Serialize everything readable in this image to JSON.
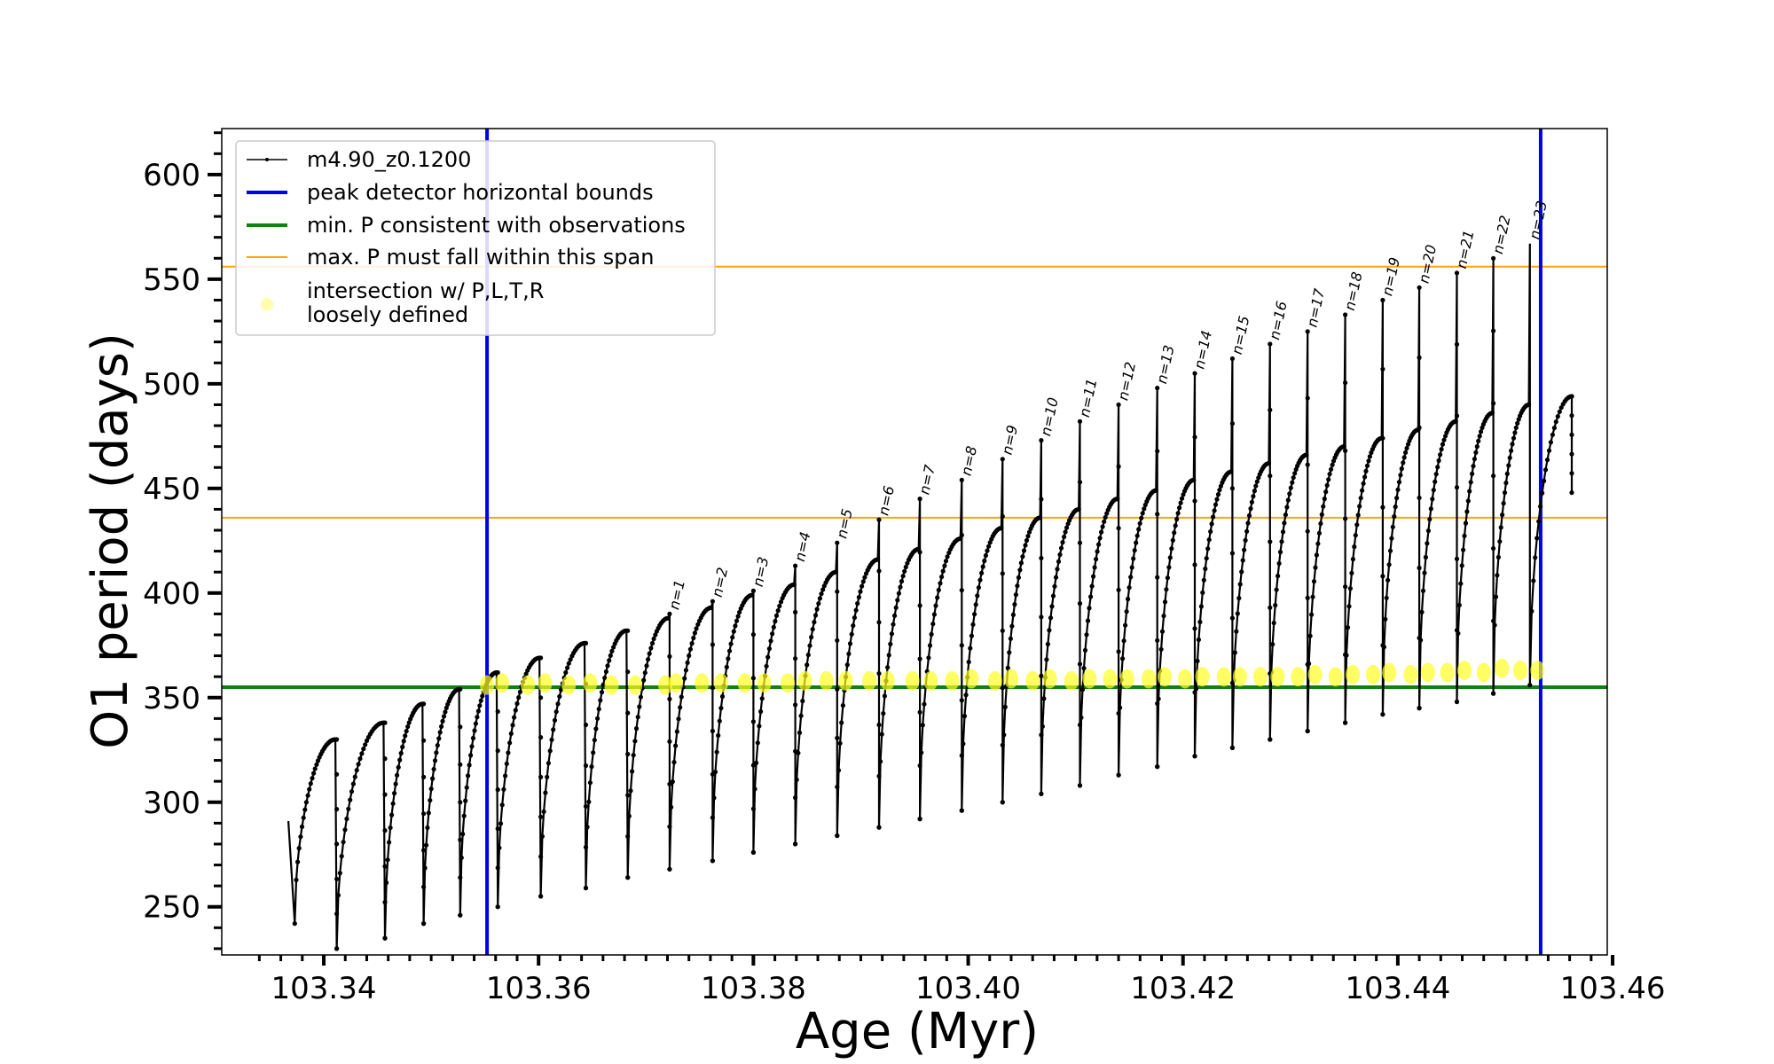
{
  "chart_data": {
    "type": "line",
    "xlabel": "Age (Myr)",
    "ylabel": "O1 period (days)",
    "xlim": [
      103.3305,
      103.4595
    ],
    "ylim": [
      227,
      622
    ],
    "x_ticks": [
      103.34,
      103.36,
      103.38,
      103.4,
      103.42,
      103.44,
      103.46
    ],
    "x_tick_labels": [
      "103.34",
      "103.36",
      "103.38",
      "103.40",
      "103.42",
      "103.44",
      "103.46"
    ],
    "y_ticks": [
      250,
      300,
      350,
      400,
      450,
      500,
      550,
      600
    ],
    "y_tick_labels": [
      "250",
      "300",
      "350",
      "400",
      "450",
      "500",
      "550",
      "600"
    ],
    "colors": {
      "track": "#000000",
      "peak_bounds": "#0000ee",
      "min_period": "#138013",
      "max_span": "#ffa500",
      "intersection": "#ffff22"
    },
    "legend": {
      "position": "top-left",
      "entries": [
        {
          "label": "m4.90_z0.1200",
          "style": "line-marker"
        },
        {
          "label": "peak detector horizontal bounds",
          "style": "blue-line"
        },
        {
          "label": "min. P consistent with observations",
          "style": "green-line"
        },
        {
          "label": "max. P must fall within this span",
          "style": "orange-line"
        },
        {
          "label": "intersection w/ P,L,T,R",
          "label2": "loosely defined",
          "style": "yellow-dot"
        }
      ]
    },
    "peak_bounds_x": [
      103.3552,
      103.4533
    ],
    "min_period_y": 355,
    "max_span_y": [
      436,
      556
    ],
    "start": {
      "age": 103.3367,
      "period": 291
    },
    "end": {
      "age": 103.4562,
      "period": 494,
      "last": 448
    },
    "cycles": [
      {
        "start": 103.3373,
        "end": 103.3412,
        "min": 242,
        "max": 330,
        "tip": null,
        "label": null
      },
      {
        "start": 103.3412,
        "end": 103.3457,
        "min": 230,
        "max": 338,
        "tip": null,
        "label": null
      },
      {
        "start": 103.3457,
        "end": 103.3493,
        "min": 235,
        "max": 347,
        "tip": null,
        "label": null
      },
      {
        "start": 103.3493,
        "end": 103.3527,
        "min": 242,
        "max": 354,
        "tip": null,
        "label": null
      },
      {
        "start": 103.3527,
        "end": 103.3562,
        "min": 246,
        "max": 362,
        "tip": null,
        "label": null
      },
      {
        "start": 103.3562,
        "end": 103.3602,
        "min": 250,
        "max": 369,
        "tip": null,
        "label": null
      },
      {
        "start": 103.3602,
        "end": 103.3644,
        "min": 255,
        "max": 376,
        "tip": null,
        "label": null
      },
      {
        "start": 103.3644,
        "end": 103.3683,
        "min": 259,
        "max": 382,
        "tip": null,
        "label": null
      },
      {
        "start": 103.3683,
        "end": 103.3722,
        "min": 264,
        "max": 388,
        "tip": 390,
        "label": "n=1"
      },
      {
        "start": 103.3722,
        "end": 103.3762,
        "min": 268,
        "max": 393,
        "tip": 396,
        "label": "n=2"
      },
      {
        "start": 103.3762,
        "end": 103.38,
        "min": 272,
        "max": 399,
        "tip": 401,
        "label": "n=3"
      },
      {
        "start": 103.38,
        "end": 103.3839,
        "min": 276,
        "max": 404,
        "tip": 413,
        "label": "n=4"
      },
      {
        "start": 103.3839,
        "end": 103.3878,
        "min": 280,
        "max": 410,
        "tip": 424,
        "label": "n=5"
      },
      {
        "start": 103.3878,
        "end": 103.3917,
        "min": 284,
        "max": 416,
        "tip": 435,
        "label": "n=6"
      },
      {
        "start": 103.3917,
        "end": 103.3955,
        "min": 288,
        "max": 421,
        "tip": 445,
        "label": "n=7"
      },
      {
        "start": 103.3955,
        "end": 103.3994,
        "min": 292,
        "max": 426,
        "tip": 454,
        "label": "n=8"
      },
      {
        "start": 103.3994,
        "end": 103.4032,
        "min": 296,
        "max": 431,
        "tip": 464,
        "label": "n=9"
      },
      {
        "start": 103.4032,
        "end": 103.4068,
        "min": 300,
        "max": 436,
        "tip": 473,
        "label": "n=10"
      },
      {
        "start": 103.4068,
        "end": 103.4104,
        "min": 304,
        "max": 440,
        "tip": 482,
        "label": "n=11"
      },
      {
        "start": 103.4104,
        "end": 103.414,
        "min": 308,
        "max": 445,
        "tip": 490,
        "label": "n=12"
      },
      {
        "start": 103.414,
        "end": 103.4176,
        "min": 313,
        "max": 449,
        "tip": 498,
        "label": "n=13"
      },
      {
        "start": 103.4176,
        "end": 103.4211,
        "min": 317,
        "max": 454,
        "tip": 505,
        "label": "n=14"
      },
      {
        "start": 103.4211,
        "end": 103.4246,
        "min": 322,
        "max": 458,
        "tip": 512,
        "label": "n=15"
      },
      {
        "start": 103.4246,
        "end": 103.4281,
        "min": 326,
        "max": 462,
        "tip": 519,
        "label": "n=16"
      },
      {
        "start": 103.4281,
        "end": 103.4316,
        "min": 330,
        "max": 466,
        "tip": 525,
        "label": "n=17"
      },
      {
        "start": 103.4316,
        "end": 103.4351,
        "min": 334,
        "max": 470,
        "tip": 533,
        "label": "n=18"
      },
      {
        "start": 103.4351,
        "end": 103.4386,
        "min": 338,
        "max": 474,
        "tip": 540,
        "label": "n=19"
      },
      {
        "start": 103.4386,
        "end": 103.442,
        "min": 342,
        "max": 478,
        "tip": 546,
        "label": "n=20"
      },
      {
        "start": 103.442,
        "end": 103.4455,
        "min": 345,
        "max": 482,
        "tip": 553,
        "label": "n=21"
      },
      {
        "start": 103.4455,
        "end": 103.4489,
        "min": 348,
        "max": 486,
        "tip": 560,
        "label": "n=22"
      },
      {
        "start": 103.4489,
        "end": 103.4523,
        "min": 352,
        "max": 490,
        "tip": 567,
        "label": "n=23"
      }
    ],
    "intersections": [
      [
        103.3552,
        356
      ],
      [
        103.3566,
        357
      ],
      [
        103.359,
        356
      ],
      [
        103.3606,
        357
      ],
      [
        103.3628,
        356
      ],
      [
        103.3648,
        357
      ],
      [
        103.3668,
        356
      ],
      [
        103.369,
        356
      ],
      [
        103.3718,
        356
      ],
      [
        103.3728,
        357
      ],
      [
        103.3752,
        357
      ],
      [
        103.377,
        357
      ],
      [
        103.3792,
        357
      ],
      [
        103.381,
        357
      ],
      [
        103.3832,
        357
      ],
      [
        103.3848,
        358
      ],
      [
        103.3868,
        358
      ],
      [
        103.3886,
        358
      ],
      [
        103.3908,
        358
      ],
      [
        103.3925,
        358
      ],
      [
        103.3948,
        358
      ],
      [
        103.3965,
        358
      ],
      [
        103.3985,
        358
      ],
      [
        103.4003,
        359
      ],
      [
        103.4025,
        358
      ],
      [
        103.404,
        359
      ],
      [
        103.406,
        358
      ],
      [
        103.4076,
        359
      ],
      [
        103.4096,
        358
      ],
      [
        103.4113,
        359
      ],
      [
        103.4132,
        359
      ],
      [
        103.4148,
        359
      ],
      [
        103.4168,
        359
      ],
      [
        103.4183,
        360
      ],
      [
        103.4202,
        359
      ],
      [
        103.4218,
        360
      ],
      [
        103.4238,
        360
      ],
      [
        103.4253,
        360
      ],
      [
        103.4272,
        360
      ],
      [
        103.4288,
        360
      ],
      [
        103.4307,
        360
      ],
      [
        103.4323,
        361
      ],
      [
        103.4342,
        360
      ],
      [
        103.4358,
        361
      ],
      [
        103.4377,
        361
      ],
      [
        103.4392,
        362
      ],
      [
        103.4412,
        361
      ],
      [
        103.4428,
        362
      ],
      [
        103.4446,
        362
      ],
      [
        103.4462,
        363
      ],
      [
        103.448,
        362
      ],
      [
        103.4497,
        364
      ],
      [
        103.4514,
        363
      ],
      [
        103.453,
        363
      ]
    ]
  }
}
